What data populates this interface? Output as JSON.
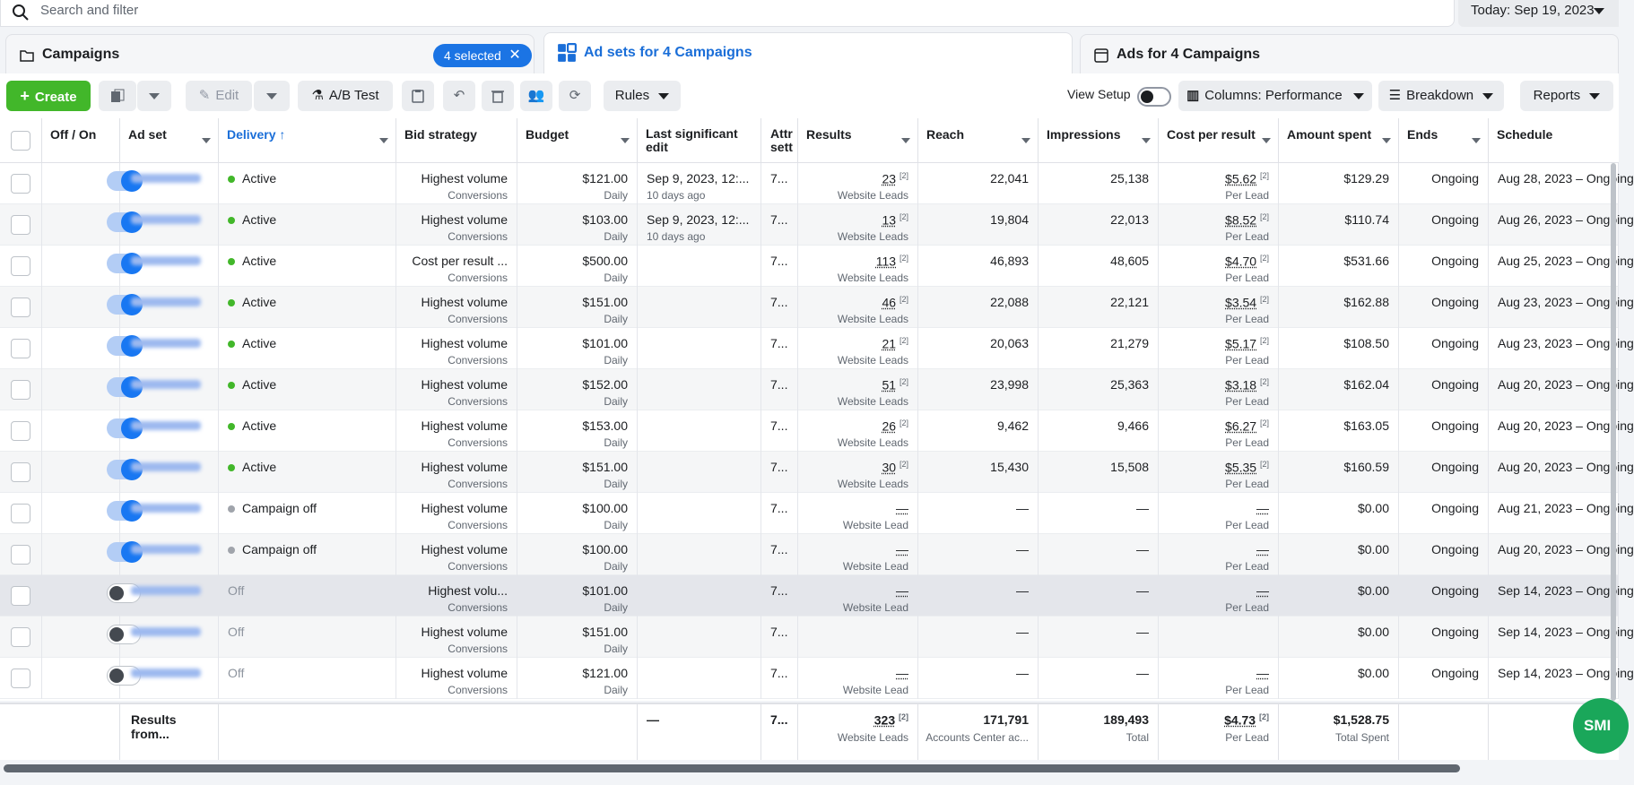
{
  "search": {
    "placeholder": "Search and filter"
  },
  "date_label": "Today: Sep 19, 2023",
  "tabs": {
    "campaigns": "Campaigns",
    "selected_badge": "4 selected",
    "adsets": "Ad sets for 4 Campaigns",
    "ads": "Ads for 4 Campaigns"
  },
  "toolbar": {
    "create": "Create",
    "edit": "Edit",
    "ab_test": "A/B Test",
    "rules": "Rules",
    "view_setup": "View Setup",
    "columns": "Columns: Performance",
    "breakdown": "Breakdown",
    "reports": "Reports"
  },
  "headers": {
    "offon": "Off / On",
    "adset": "Ad set",
    "delivery": "Delivery",
    "bid": "Bid strategy",
    "budget": "Budget",
    "lastedit": "Last significant edit",
    "attr": "Attr sett",
    "results": "Results",
    "reach": "Reach",
    "impressions": "Impressions",
    "cpr": "Cost per result",
    "spent": "Amount spent",
    "ends": "Ends",
    "schedule": "Schedule"
  },
  "rows": [
    {
      "on": true,
      "delivery": "Active",
      "status": "active",
      "bid": "Highest volume",
      "bid_sub": "Conversions",
      "budget": "$121.00",
      "budget_sub": "Daily",
      "lastedit": "Sep 9, 2023, 12:...",
      "lastedit_sub": "10 days ago",
      "attr": "7...",
      "results": "23",
      "results_sub": "Website Leads",
      "reach": "22,041",
      "impressions": "25,138",
      "cpr": "$5.62",
      "cpr_sub": "Per Lead",
      "spent": "$129.29",
      "ends": "Ongoing",
      "schedule": "Aug 28, 2023 – Ongoing"
    },
    {
      "on": true,
      "delivery": "Active",
      "status": "active",
      "bid": "Highest volume",
      "bid_sub": "Conversions",
      "budget": "$103.00",
      "budget_sub": "Daily",
      "lastedit": "Sep 9, 2023, 12:...",
      "lastedit_sub": "10 days ago",
      "attr": "7...",
      "results": "13",
      "results_sub": "Website Leads",
      "reach": "19,804",
      "impressions": "22,013",
      "cpr": "$8.52",
      "cpr_sub": "Per Lead",
      "spent": "$110.74",
      "ends": "Ongoing",
      "schedule": "Aug 26, 2023 – Ongoing"
    },
    {
      "on": true,
      "delivery": "Active",
      "status": "active",
      "bid": "Cost per result ...",
      "bid_sub": "Conversions",
      "budget": "$500.00",
      "budget_sub": "Daily",
      "lastedit": "",
      "lastedit_sub": "",
      "attr": "7...",
      "results": "113",
      "results_sub": "Website Leads",
      "reach": "46,893",
      "impressions": "48,605",
      "cpr": "$4.70",
      "cpr_sub": "Per Lead",
      "spent": "$531.66",
      "ends": "Ongoing",
      "schedule": "Aug 25, 2023 – Ongoing"
    },
    {
      "on": true,
      "delivery": "Active",
      "status": "active",
      "bid": "Highest volume",
      "bid_sub": "Conversions",
      "budget": "$151.00",
      "budget_sub": "Daily",
      "lastedit": "",
      "lastedit_sub": "",
      "attr": "7...",
      "results": "46",
      "results_sub": "Website Leads",
      "reach": "22,088",
      "impressions": "22,121",
      "cpr": "$3.54",
      "cpr_sub": "Per Lead",
      "spent": "$162.88",
      "ends": "Ongoing",
      "schedule": "Aug 23, 2023 – Ongoing"
    },
    {
      "on": true,
      "delivery": "Active",
      "status": "active",
      "bid": "Highest volume",
      "bid_sub": "Conversions",
      "budget": "$101.00",
      "budget_sub": "Daily",
      "lastedit": "",
      "lastedit_sub": "",
      "attr": "7...",
      "results": "21",
      "results_sub": "Website Leads",
      "reach": "20,063",
      "impressions": "21,279",
      "cpr": "$5.17",
      "cpr_sub": "Per Lead",
      "spent": "$108.50",
      "ends": "Ongoing",
      "schedule": "Aug 23, 2023 – Ongoing"
    },
    {
      "on": true,
      "delivery": "Active",
      "status": "active",
      "bid": "Highest volume",
      "bid_sub": "Conversions",
      "budget": "$152.00",
      "budget_sub": "Daily",
      "lastedit": "",
      "lastedit_sub": "",
      "attr": "7...",
      "results": "51",
      "results_sub": "Website Leads",
      "reach": "23,998",
      "impressions": "25,363",
      "cpr": "$3.18",
      "cpr_sub": "Per Lead",
      "spent": "$162.04",
      "ends": "Ongoing",
      "schedule": "Aug 20, 2023 – Ongoing"
    },
    {
      "on": true,
      "delivery": "Active",
      "status": "active",
      "bid": "Highest volume",
      "bid_sub": "Conversions",
      "budget": "$153.00",
      "budget_sub": "Daily",
      "lastedit": "",
      "lastedit_sub": "",
      "attr": "7...",
      "results": "26",
      "results_sub": "Website Leads",
      "reach": "9,462",
      "impressions": "9,466",
      "cpr": "$6.27",
      "cpr_sub": "Per Lead",
      "spent": "$163.05",
      "ends": "Ongoing",
      "schedule": "Aug 20, 2023 – Ongoing"
    },
    {
      "on": true,
      "delivery": "Active",
      "status": "active",
      "bid": "Highest volume",
      "bid_sub": "Conversions",
      "budget": "$151.00",
      "budget_sub": "Daily",
      "lastedit": "",
      "lastedit_sub": "",
      "attr": "7...",
      "results": "30",
      "results_sub": "Website Leads",
      "reach": "15,430",
      "impressions": "15,508",
      "cpr": "$5.35",
      "cpr_sub": "Per Lead",
      "spent": "$160.59",
      "ends": "Ongoing",
      "schedule": "Aug 20, 2023 – Ongoing"
    },
    {
      "on": true,
      "delivery": "Campaign off",
      "status": "campoff",
      "bid": "Highest volume",
      "bid_sub": "Conversions",
      "budget": "$100.00",
      "budget_sub": "Daily",
      "lastedit": "",
      "lastedit_sub": "",
      "attr": "7...",
      "results": "—",
      "results_sub": "Website Lead",
      "reach": "—",
      "impressions": "—",
      "cpr": "—",
      "cpr_sub": "Per Lead",
      "spent": "$0.00",
      "ends": "Ongoing",
      "schedule": "Aug 21, 2023 – Ongoing"
    },
    {
      "on": true,
      "delivery": "Campaign off",
      "status": "campoff",
      "bid": "Highest volume",
      "bid_sub": "Conversions",
      "budget": "$100.00",
      "budget_sub": "Daily",
      "lastedit": "",
      "lastedit_sub": "",
      "attr": "7...",
      "results": "—",
      "results_sub": "Website Lead",
      "reach": "—",
      "impressions": "—",
      "cpr": "—",
      "cpr_sub": "Per Lead",
      "spent": "$0.00",
      "ends": "Ongoing",
      "schedule": "Aug 20, 2023 – Ongoing"
    },
    {
      "on": false,
      "delivery": "Off",
      "status": "off",
      "bid": "Highest volu...",
      "bid_sub": "Conversions",
      "budget": "$101.00",
      "budget_sub": "Daily",
      "lastedit": "",
      "lastedit_sub": "",
      "attr": "7...",
      "results": "—",
      "results_sub": "Website Lead",
      "reach": "—",
      "impressions": "—",
      "cpr": "—",
      "cpr_sub": "Per Lead",
      "spent": "$0.00",
      "ends": "Ongoing",
      "schedule": "Sep 14, 2023 – Ongoing",
      "highlight": true
    },
    {
      "on": false,
      "delivery": "Off",
      "status": "off",
      "bid": "Highest volume",
      "bid_sub": "Conversions",
      "budget": "$151.00",
      "budget_sub": "Daily",
      "lastedit": "",
      "lastedit_sub": "",
      "attr": "7...",
      "results": "",
      "results_sub": "",
      "reach": "—",
      "impressions": "—",
      "cpr": "",
      "cpr_sub": "",
      "spent": "$0.00",
      "ends": "Ongoing",
      "schedule": "Sep 14, 2023 – Ongoing"
    },
    {
      "on": false,
      "delivery": "Off",
      "status": "off",
      "bid": "Highest volume",
      "bid_sub": "Conversions",
      "budget": "$121.00",
      "budget_sub": "Daily",
      "lastedit": "",
      "lastedit_sub": "",
      "attr": "7...",
      "results": "—",
      "results_sub": "Website Lead",
      "reach": "—",
      "impressions": "—",
      "cpr": "—",
      "cpr_sub": "Per Lead",
      "spent": "$0.00",
      "ends": "Ongoing",
      "schedule": "Sep 14, 2023 – Ongoing"
    }
  ],
  "totals": {
    "label": "Results from...",
    "lastedit": "—",
    "attr": "7...",
    "results": "323",
    "results_sub": "Website Leads",
    "reach": "171,791",
    "reach_sub": "Accounts Center ac...",
    "impressions": "189,493",
    "impressions_sub": "Total",
    "cpr": "$4.73",
    "cpr_sub": "Per Lead",
    "spent": "$1,528.75",
    "spent_sub": "Total Spent"
  },
  "footnote_marker": "[2]",
  "chat_badge": "SMI"
}
